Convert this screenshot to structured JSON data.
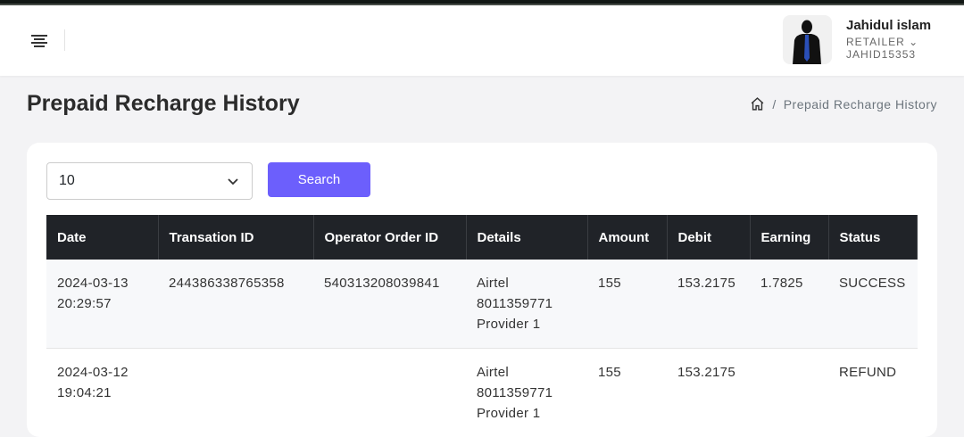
{
  "header": {
    "user_name": "Jahidul islam",
    "role": "RETAILER",
    "user_id": "JAHID15353"
  },
  "page": {
    "title": "Prepaid Recharge History",
    "breadcrumb": "Prepaid Recharge History"
  },
  "filters": {
    "page_size": "10",
    "search_label": "Search"
  },
  "table": {
    "columns": [
      "Date",
      "Transation ID",
      "Operator Order ID",
      "Details",
      "Amount",
      "Debit",
      "Earning",
      "Status"
    ],
    "rows": [
      {
        "date": "2024-03-13",
        "time": "20:29:57",
        "txn": "244386338765358",
        "order": "540313208039841",
        "operator": "Airtel",
        "number": "8011359771",
        "provider": "Provider 1",
        "amount": "155",
        "debit": "153.2175",
        "earning": "1.7825",
        "status": "SUCCESS"
      },
      {
        "date": "2024-03-12",
        "time": "19:04:21",
        "txn": "",
        "order": "",
        "operator": "Airtel",
        "number": "8011359771",
        "provider": "Provider 1",
        "amount": "155",
        "debit": "153.2175",
        "earning": "",
        "status": "REFUND"
      }
    ]
  },
  "colors": {
    "accent": "#6c5ffc",
    "table_header": "#202328"
  }
}
